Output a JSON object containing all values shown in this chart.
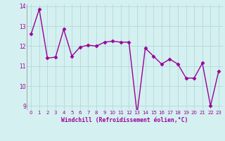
{
  "x": [
    0,
    1,
    2,
    3,
    4,
    5,
    6,
    7,
    8,
    9,
    10,
    11,
    12,
    13,
    14,
    15,
    16,
    17,
    18,
    19,
    20,
    21,
    22,
    23
  ],
  "y": [
    12.6,
    13.85,
    11.4,
    11.45,
    12.85,
    11.5,
    11.95,
    12.05,
    12.0,
    12.2,
    12.25,
    12.2,
    12.2,
    8.6,
    11.9,
    11.5,
    11.1,
    11.35,
    11.1,
    10.4,
    10.4,
    11.15,
    9.0,
    10.75
  ],
  "line_color": "#990099",
  "marker": "D",
  "marker_size": 2.5,
  "bg_color": "#d5f0f0",
  "grid_color": "#b0dada",
  "xlabel": "Windchill (Refroidissement éolien,°C)",
  "xlabel_color": "#990099",
  "tick_color": "#990099",
  "ylim": [
    8.8,
    14.1
  ],
  "xlim": [
    -0.5,
    23.5
  ],
  "yticks": [
    9,
    10,
    11,
    12,
    13,
    14
  ],
  "xticks": [
    0,
    1,
    2,
    3,
    4,
    5,
    6,
    7,
    8,
    9,
    10,
    11,
    12,
    13,
    14,
    15,
    16,
    17,
    18,
    19,
    20,
    21,
    22,
    23
  ],
  "linewidth": 1.0
}
